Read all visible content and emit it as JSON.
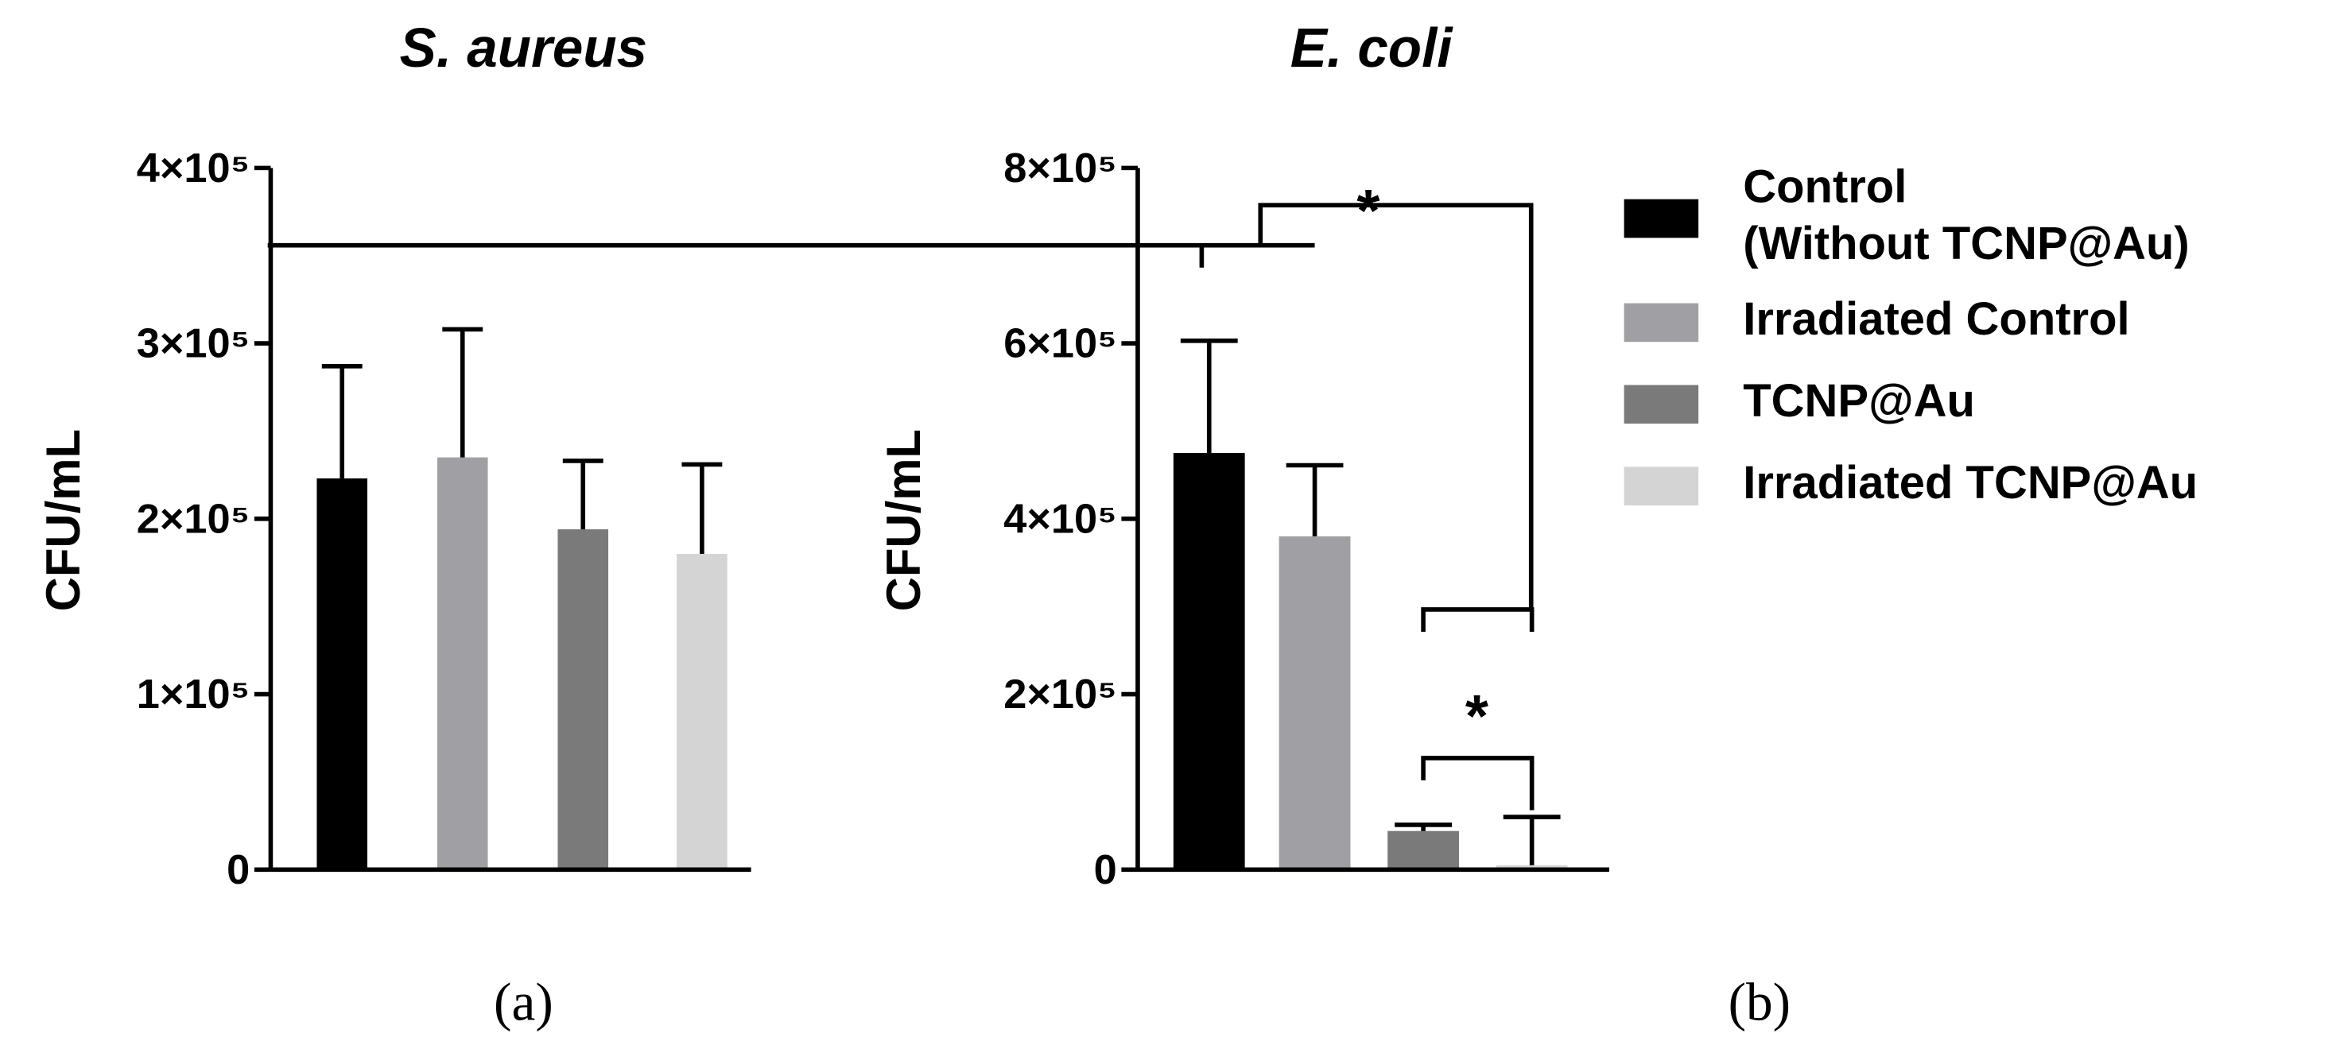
{
  "chart_data": [
    {
      "type": "bar",
      "title": "S. aureus",
      "ylabel": "CFU/mL",
      "panel_label": "(a)",
      "categories": [
        null,
        null,
        null,
        null
      ],
      "values": [
        223000,
        235000,
        194000,
        180000
      ],
      "errors": [
        64000,
        73000,
        39000,
        51000
      ],
      "colors": [
        "#000000",
        "#a0a0a4",
        "#7a7a7a",
        "#d4d4d4"
      ],
      "ylim": [
        0,
        400000
      ],
      "yticks": [
        0,
        {
          "value": 100000,
          "label": "1×10⁵"
        },
        {
          "value": 200000,
          "label": "2×10⁵"
        },
        {
          "value": 300000,
          "label": "3×10⁵"
        },
        {
          "value": 400000,
          "label": "4×10⁵"
        }
      ]
    },
    {
      "type": "bar",
      "title": "E. coli",
      "ylabel": "CFU/mL",
      "panel_label": "(b)",
      "categories": [
        null,
        null,
        null,
        null
      ],
      "values": [
        475000,
        380000,
        44000,
        5000
      ],
      "errors": [
        128000,
        81000,
        7000,
        55000
      ],
      "colors": [
        "#000000",
        "#a0a0a4",
        "#7a7a7a",
        "#d4d4d4"
      ],
      "ylim": [
        0,
        800000
      ],
      "yticks": [
        0,
        {
          "value": 200000,
          "label": "2×10⁵"
        },
        {
          "value": 400000,
          "label": "4×10⁵"
        },
        {
          "value": 600000,
          "label": "6×10⁵"
        },
        {
          "value": 800000,
          "label": "8×10⁵"
        }
      ],
      "annotations": [
        "*",
        "*"
      ],
      "legend": [
        [
          "Control",
          "(Without TCNP@Au)"
        ],
        [
          "Irradiated Control"
        ],
        [
          "TCNP@Au"
        ],
        [
          "Irradiated TCNP@Au"
        ]
      ]
    }
  ]
}
